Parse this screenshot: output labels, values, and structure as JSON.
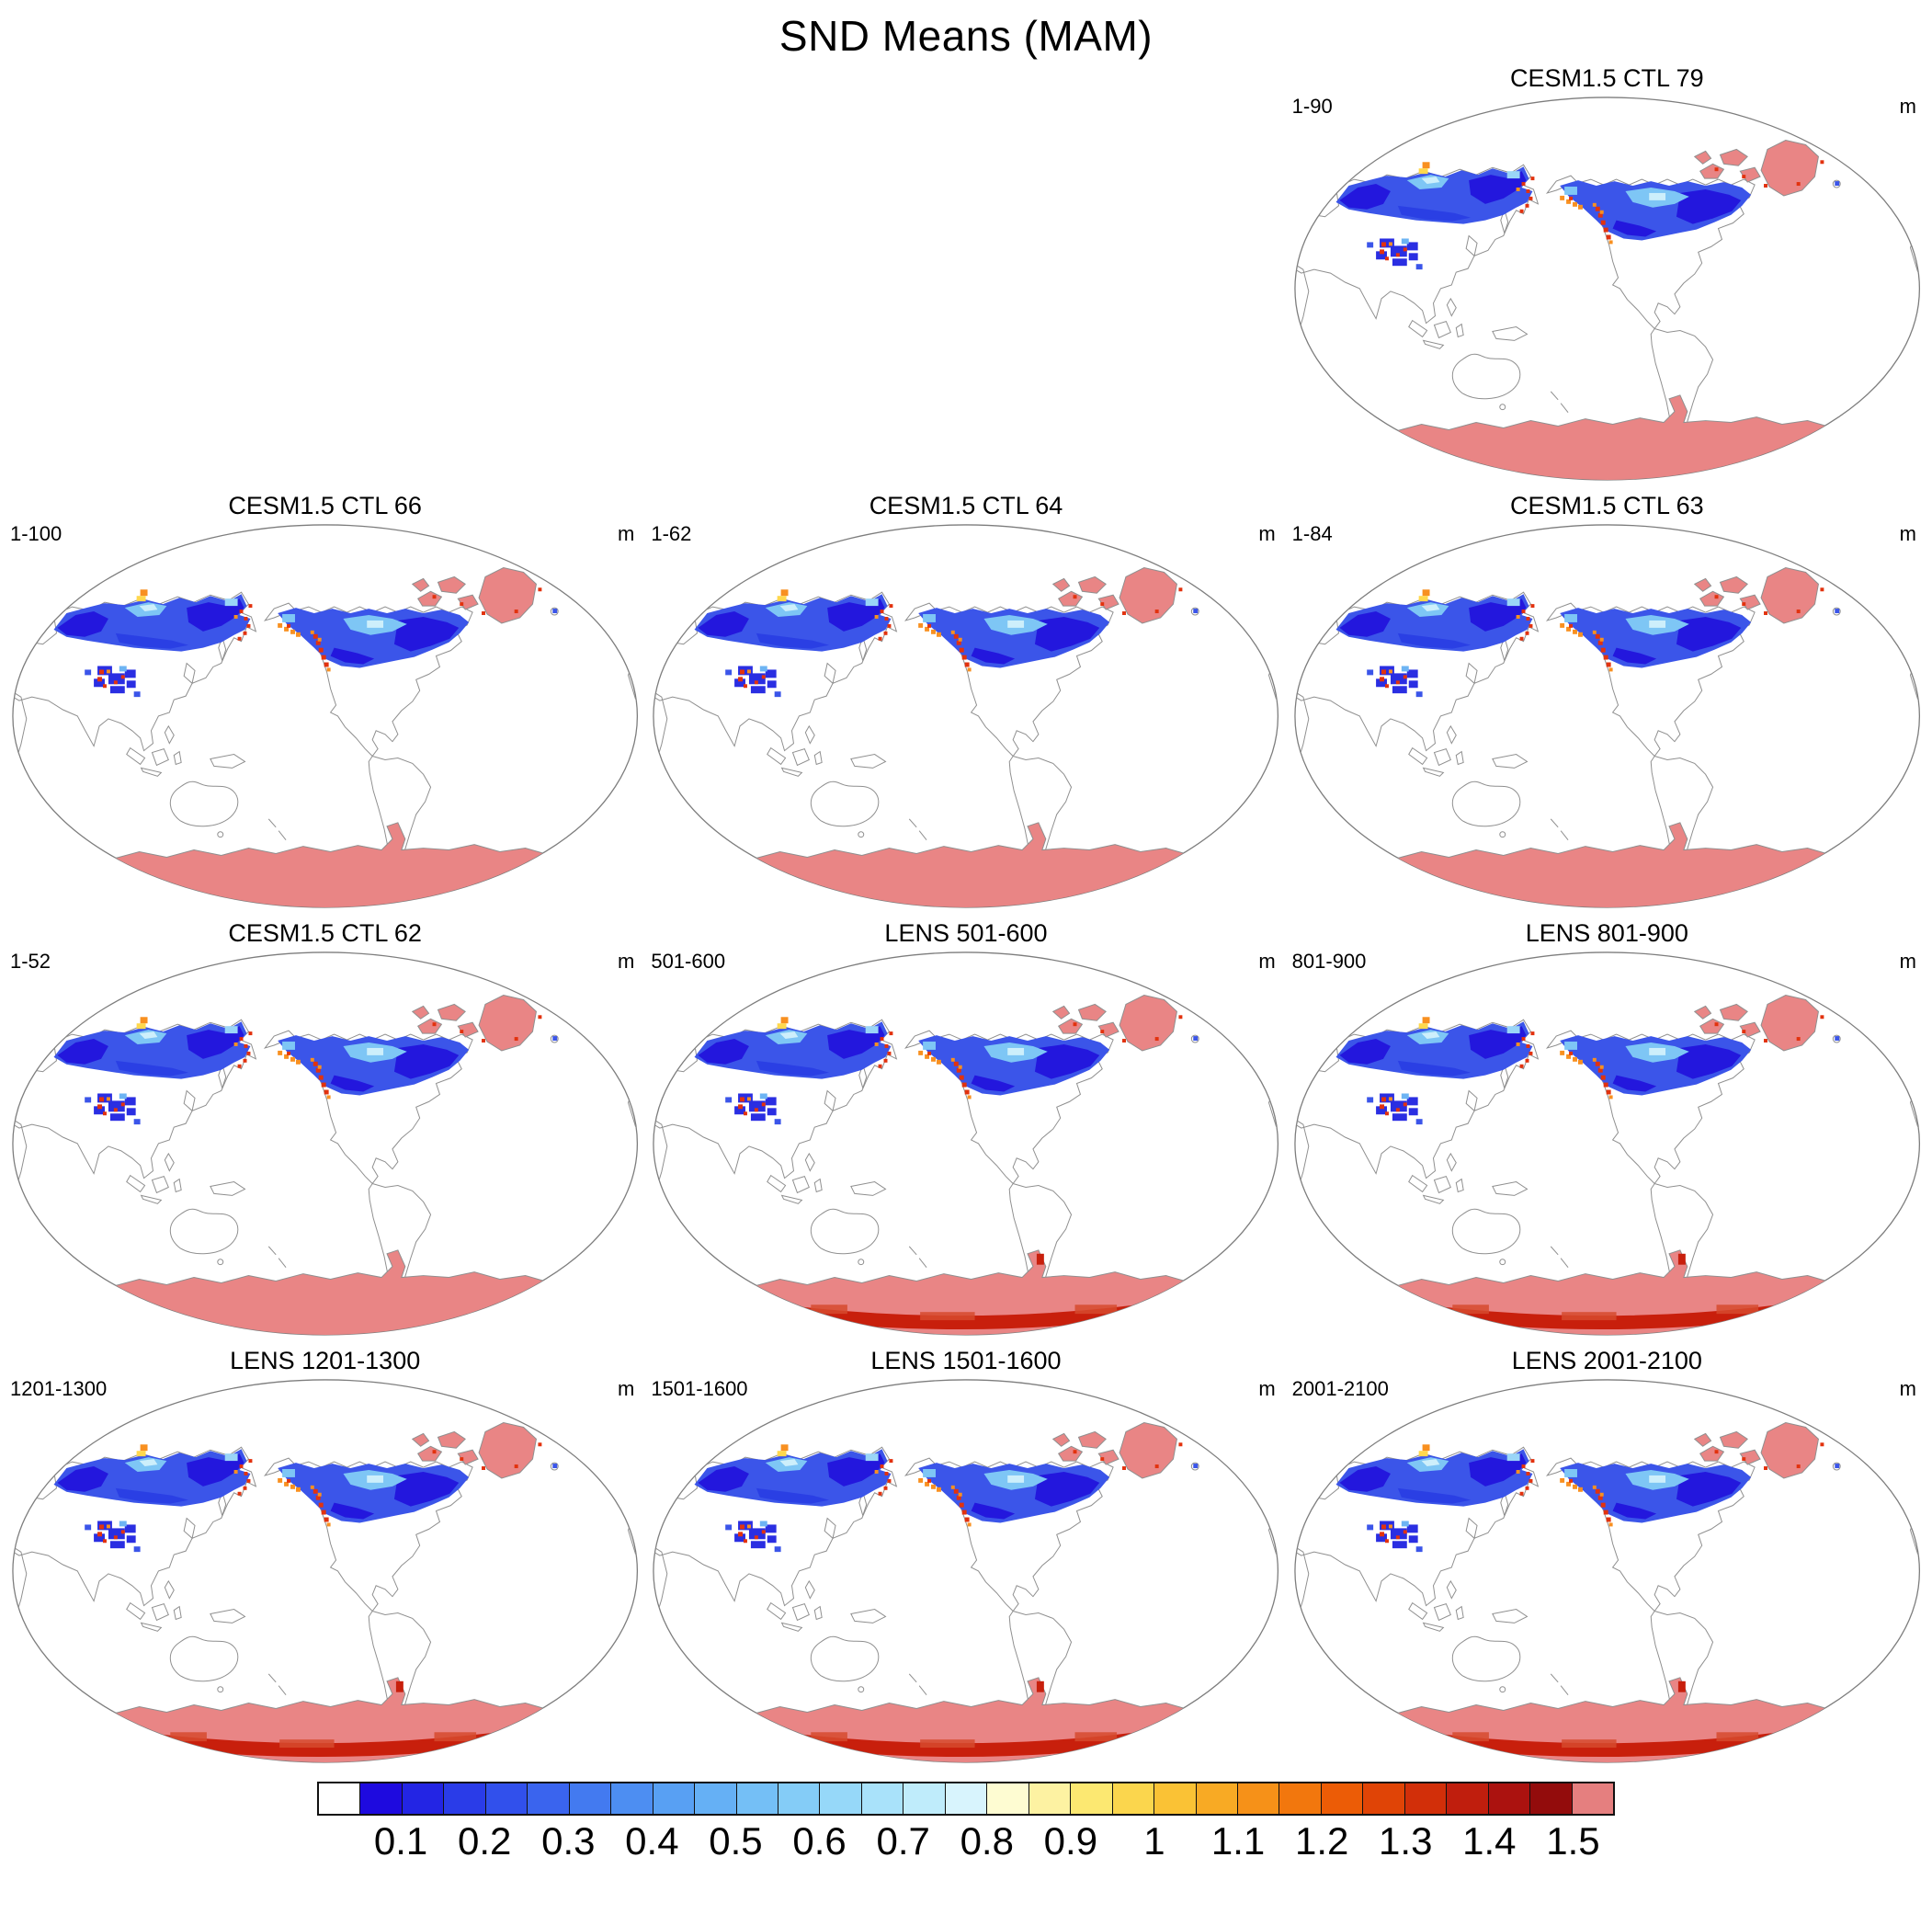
{
  "page": {
    "title": "SND Means (MAM)"
  },
  "panels": [
    {
      "title": "CESM1.5 CTL 79",
      "range_label": "1-90",
      "unit": "m",
      "style": "cesm"
    },
    {
      "title": "CESM1.5 CTL 66",
      "range_label": "1-100",
      "unit": "m",
      "style": "cesm"
    },
    {
      "title": "CESM1.5 CTL 64",
      "range_label": "1-62",
      "unit": "m",
      "style": "cesm"
    },
    {
      "title": "CESM1.5 CTL 63",
      "range_label": "1-84",
      "unit": "m",
      "style": "cesm"
    },
    {
      "title": "CESM1.5 CTL 62",
      "range_label": "1-52",
      "unit": "m",
      "style": "cesm"
    },
    {
      "title": "LENS 501-600",
      "range_label": "501-600",
      "unit": "m",
      "style": "lens"
    },
    {
      "title": "LENS 801-900",
      "range_label": "801-900",
      "unit": "m",
      "style": "lens"
    },
    {
      "title": "LENS 1201-1300",
      "range_label": "1201-1300",
      "unit": "m",
      "style": "lens"
    },
    {
      "title": "LENS 1501-1600",
      "range_label": "1501-1600",
      "unit": "m",
      "style": "lens"
    },
    {
      "title": "LENS 2001-2100",
      "range_label": "2001-2100",
      "unit": "m",
      "style": "lens"
    }
  ],
  "colorbar": {
    "ticks": [
      "0.1",
      "0.2",
      "0.3",
      "0.4",
      "0.5",
      "0.6",
      "0.7",
      "0.8",
      "0.9",
      "1",
      "1.1",
      "1.2",
      "1.3",
      "1.4",
      "1.5"
    ],
    "under_color": "#ffffff",
    "over_color": "#e57f7f",
    "ramp_colors": [
      "#1e0adf",
      "#2325e4",
      "#2a3ce8",
      "#3150ec",
      "#3a64ee",
      "#437af0",
      "#4d8ef2",
      "#58a0f3",
      "#65b0f5",
      "#74bff6",
      "#84ccf7",
      "#96d8f9",
      "#a9e2fa",
      "#bfecfb",
      "#d8f4fd",
      "#fefcd2",
      "#fdf2a2",
      "#fce871",
      "#fbd64d",
      "#fac235",
      "#f8aa24",
      "#f69118",
      "#f2770d",
      "#ec5c06",
      "#e04406",
      "#d22f09",
      "#c01e0d",
      "#ab120f",
      "#930c0c"
    ]
  },
  "chart_data": {
    "type": "heatmap",
    "title": "SND Means (MAM)",
    "variable": "SND (snow depth)",
    "season": "MAM",
    "units": "m",
    "projection": "global elliptical world map, Pacific-centered",
    "layout": "10 panels: row 1 has one panel in the right column; rows 2-4 have three panels each; shared horizontal colorbar at bottom",
    "panels": [
      {
        "title": "CESM1.5 CTL 79",
        "member_range": "1-90",
        "units": "m"
      },
      {
        "title": "CESM1.5 CTL 66",
        "member_range": "1-100",
        "units": "m"
      },
      {
        "title": "CESM1.5 CTL 64",
        "member_range": "1-62",
        "units": "m"
      },
      {
        "title": "CESM1.5 CTL 63",
        "member_range": "1-84",
        "units": "m"
      },
      {
        "title": "CESM1.5 CTL 62",
        "member_range": "1-52",
        "units": "m"
      },
      {
        "title": "LENS 501-600",
        "member_range": "501-600",
        "units": "m"
      },
      {
        "title": "LENS 801-900",
        "member_range": "801-900",
        "units": "m"
      },
      {
        "title": "LENS 1201-1300",
        "member_range": "1201-1300",
        "units": "m"
      },
      {
        "title": "LENS 1501-1600",
        "member_range": "1501-1600",
        "units": "m"
      },
      {
        "title": "LENS 2001-2100",
        "member_range": "2001-2100",
        "units": "m"
      }
    ],
    "colorbar": {
      "orientation": "horizontal",
      "position": "bottom",
      "ticks": [
        0.1,
        0.2,
        0.3,
        0.4,
        0.5,
        0.6,
        0.7,
        0.8,
        0.9,
        1,
        1.1,
        1.2,
        1.3,
        1.4,
        1.5
      ],
      "tick_step": 0.1,
      "segment_step": 0.05,
      "under_color": "#ffffff",
      "over_color": "#e57f7f",
      "ramp": "deep blue (0-0.1) through light blues (to ~0.8), pale yellow (0.8), yellow-orange (0.9-1.0), orange (1.0-1.2), red (1.2-1.4), dark red (1.4-1.5), salmon for >1.5"
    },
    "value_pattern": "Blue shades (0.05-0.8 m) cover Siberia, northern Canada/Alaska, the Tibetan Plateau, Scandinavia; cyan/white streaks in central Siberia and central Canada; orange/red speckles (1-1.5 m) along Kamchatka, Alaskan coast, Rockies and Himalayan ranges; salmon (>1.5 m) over Greenland, Canadian Arctic islands and Antarctica; LENS panels additionally show dark red (1.3-1.5 m) along the lower Antarctic margin"
  }
}
